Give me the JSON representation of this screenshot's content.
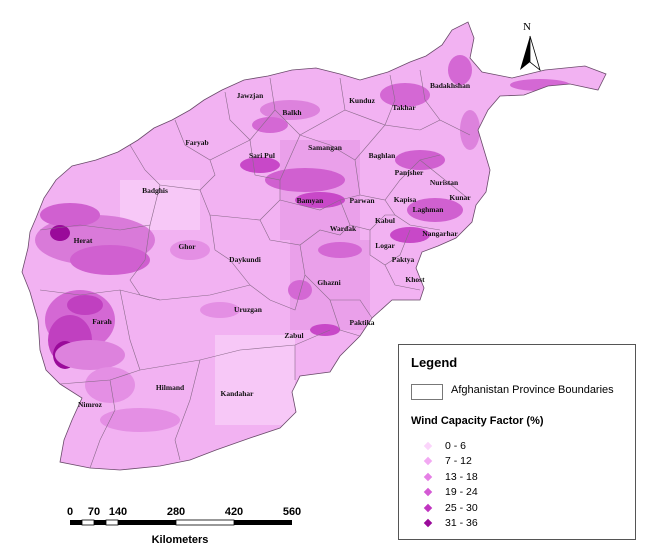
{
  "north_label": "N",
  "provinces": [
    "Badakhshan",
    "Takhar",
    "Kunduz",
    "Balkh",
    "Jawzjan",
    "Faryab",
    "Sari Pul",
    "Samangan",
    "Baghlan",
    "Panjsher",
    "Nuristan",
    "Badghis",
    "Bamyan",
    "Parwan",
    "Kapisa",
    "Kunar",
    "Laghman",
    "Herat",
    "Ghor",
    "Wardak",
    "Kabul",
    "Nangarhar",
    "Logar",
    "Daykundi",
    "Paktya",
    "Ghazni",
    "Khost",
    "Uruzgan",
    "Farah",
    "Paktika",
    "Zabul",
    "Hilmand",
    "Nimroz",
    "Kandahar"
  ],
  "legend": {
    "title": "Legend",
    "boundary_label": "Afghanistan Province Boundaries",
    "wind_title": "Wind Capacity Factor (%)",
    "classes": [
      {
        "label": "0 - 6",
        "color": "#fbd5fb"
      },
      {
        "label": "7 - 12",
        "color": "#f2a9f2"
      },
      {
        "label": "13 - 18",
        "color": "#e57fe5"
      },
      {
        "label": "19 - 24",
        "color": "#d45ad4"
      },
      {
        "label": "25 - 30",
        "color": "#c034c0"
      },
      {
        "label": "31 - 36",
        "color": "#9a0a9a"
      }
    ]
  },
  "scale_bar": {
    "ticks": [
      "0",
      "70",
      "140",
      "280",
      "420",
      "560"
    ],
    "units": "Kilometers"
  },
  "colors": {
    "base_fill": "#f2b2f2",
    "boundary": "#8a6a8a"
  }
}
